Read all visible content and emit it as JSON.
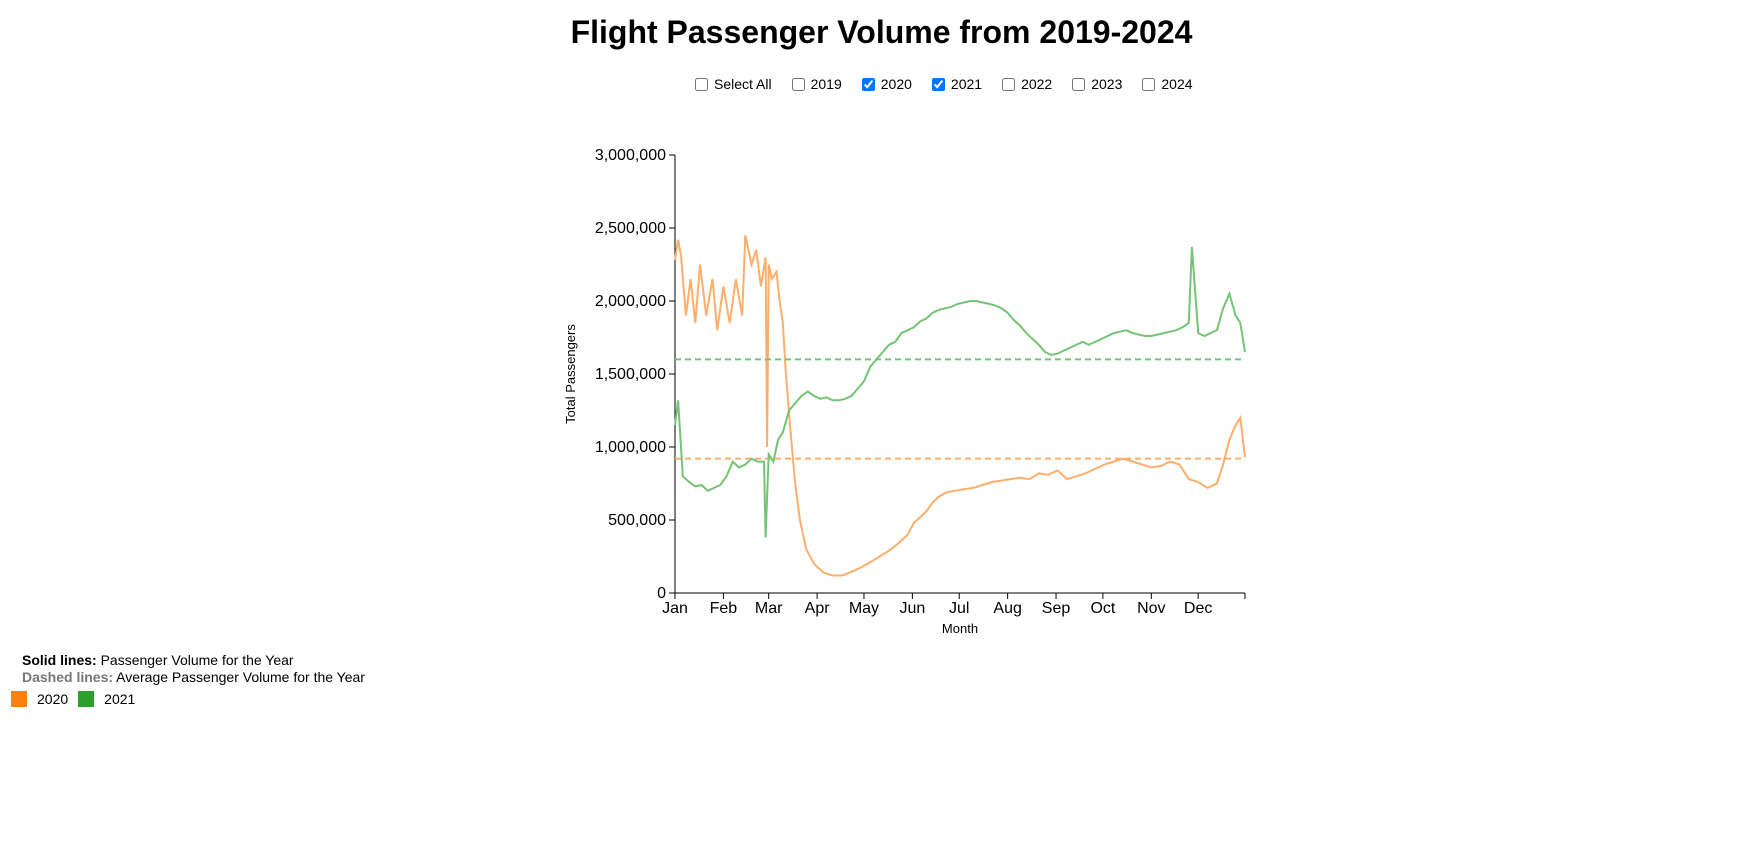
{
  "title": "Flight Passenger Volume from 2019-2024",
  "controls": [
    {
      "label": "Select All",
      "checked": false
    },
    {
      "label": "2019",
      "checked": false
    },
    {
      "label": "2020",
      "checked": true
    },
    {
      "label": "2021",
      "checked": true
    },
    {
      "label": "2022",
      "checked": false
    },
    {
      "label": "2023",
      "checked": false
    },
    {
      "label": "2024",
      "checked": false
    }
  ],
  "notes": {
    "solid_key": "Solid lines:",
    "solid_text": " Passenger Volume for the Year",
    "dashed_key": "Dashed lines:",
    "dashed_text": " Average Passenger Volume for the Year"
  },
  "legend": [
    {
      "label": "2020",
      "color": "#ff7f0e"
    },
    {
      "label": "2021",
      "color": "#2ca02c"
    }
  ],
  "chart_data": {
    "type": "line",
    "title": "Flight Passenger Volume from 2019-2024",
    "xlabel": "Month",
    "ylabel": "Total Passengers",
    "ylim": [
      0,
      3000000
    ],
    "yticks": [
      0,
      500000,
      1000000,
      1500000,
      2000000,
      2500000,
      3000000
    ],
    "ytick_labels": [
      "0",
      "500,000",
      "1,000,000",
      "1,500,000",
      "2,000,000",
      "2,500,000",
      "3,000,000"
    ],
    "xlim": [
      1,
      366
    ],
    "x_unit": "day of year",
    "xticks": [
      {
        "label": "Jan",
        "day": 1
      },
      {
        "label": "Feb",
        "day": 32
      },
      {
        "label": "Mar",
        "day": 61
      },
      {
        "label": "Apr",
        "day": 92
      },
      {
        "label": "May",
        "day": 122
      },
      {
        "label": "Jun",
        "day": 153
      },
      {
        "label": "Jul",
        "day": 183
      },
      {
        "label": "Aug",
        "day": 214
      },
      {
        "label": "Sep",
        "day": 245
      },
      {
        "label": "Oct",
        "day": 275
      },
      {
        "label": "Nov",
        "day": 306
      },
      {
        "label": "Dec",
        "day": 336
      }
    ],
    "grid": false,
    "legend_placement": "bottom-left",
    "series": [
      {
        "name": "2020",
        "color": "#fdae6b",
        "average": 920000,
        "points": [
          [
            1,
            2280000
          ],
          [
            3,
            2420000
          ],
          [
            5,
            2300000
          ],
          [
            8,
            1900000
          ],
          [
            11,
            2150000
          ],
          [
            14,
            1850000
          ],
          [
            17,
            2250000
          ],
          [
            21,
            1900000
          ],
          [
            25,
            2150000
          ],
          [
            28,
            1800000
          ],
          [
            32,
            2100000
          ],
          [
            36,
            1850000
          ],
          [
            40,
            2150000
          ],
          [
            44,
            1900000
          ],
          [
            46,
            2450000
          ],
          [
            50,
            2250000
          ],
          [
            53,
            2350000
          ],
          [
            56,
            2100000
          ],
          [
            59,
            2300000
          ],
          [
            60,
            1000000
          ],
          [
            61,
            2250000
          ],
          [
            63,
            2150000
          ],
          [
            66,
            2200000
          ],
          [
            68,
            2000000
          ],
          [
            70,
            1850000
          ],
          [
            72,
            1500000
          ],
          [
            75,
            1100000
          ],
          [
            78,
            750000
          ],
          [
            81,
            500000
          ],
          [
            85,
            300000
          ],
          [
            90,
            200000
          ],
          [
            96,
            140000
          ],
          [
            102,
            120000
          ],
          [
            108,
            120000
          ],
          [
            114,
            145000
          ],
          [
            120,
            175000
          ],
          [
            126,
            210000
          ],
          [
            132,
            250000
          ],
          [
            138,
            290000
          ],
          [
            144,
            340000
          ],
          [
            150,
            400000
          ],
          [
            154,
            480000
          ],
          [
            158,
            520000
          ],
          [
            162,
            560000
          ],
          [
            166,
            620000
          ],
          [
            170,
            660000
          ],
          [
            175,
            690000
          ],
          [
            180,
            700000
          ],
          [
            186,
            710000
          ],
          [
            192,
            720000
          ],
          [
            198,
            740000
          ],
          [
            204,
            760000
          ],
          [
            210,
            770000
          ],
          [
            216,
            780000
          ],
          [
            222,
            790000
          ],
          [
            228,
            780000
          ],
          [
            234,
            820000
          ],
          [
            240,
            810000
          ],
          [
            246,
            840000
          ],
          [
            252,
            780000
          ],
          [
            258,
            800000
          ],
          [
            264,
            820000
          ],
          [
            270,
            850000
          ],
          [
            276,
            880000
          ],
          [
            282,
            900000
          ],
          [
            288,
            920000
          ],
          [
            294,
            900000
          ],
          [
            300,
            880000
          ],
          [
            306,
            860000
          ],
          [
            312,
            870000
          ],
          [
            318,
            900000
          ],
          [
            324,
            880000
          ],
          [
            330,
            780000
          ],
          [
            336,
            760000
          ],
          [
            342,
            720000
          ],
          [
            348,
            750000
          ],
          [
            352,
            880000
          ],
          [
            356,
            1050000
          ],
          [
            360,
            1150000
          ],
          [
            363,
            1200000
          ],
          [
            366,
            930000
          ]
        ]
      },
      {
        "name": "2021",
        "color": "#74c476",
        "average": 1600000,
        "points": [
          [
            1,
            1150000
          ],
          [
            3,
            1320000
          ],
          [
            6,
            800000
          ],
          [
            10,
            760000
          ],
          [
            14,
            730000
          ],
          [
            18,
            740000
          ],
          [
            22,
            700000
          ],
          [
            26,
            720000
          ],
          [
            30,
            740000
          ],
          [
            34,
            800000
          ],
          [
            38,
            900000
          ],
          [
            42,
            860000
          ],
          [
            46,
            880000
          ],
          [
            50,
            920000
          ],
          [
            54,
            900000
          ],
          [
            58,
            900000
          ],
          [
            59,
            380000
          ],
          [
            61,
            950000
          ],
          [
            64,
            900000
          ],
          [
            67,
            1050000
          ],
          [
            70,
            1100000
          ],
          [
            74,
            1250000
          ],
          [
            78,
            1300000
          ],
          [
            82,
            1350000
          ],
          [
            86,
            1380000
          ],
          [
            90,
            1350000
          ],
          [
            94,
            1330000
          ],
          [
            98,
            1340000
          ],
          [
            102,
            1320000
          ],
          [
            106,
            1320000
          ],
          [
            110,
            1330000
          ],
          [
            114,
            1350000
          ],
          [
            118,
            1400000
          ],
          [
            122,
            1450000
          ],
          [
            126,
            1550000
          ],
          [
            130,
            1600000
          ],
          [
            134,
            1650000
          ],
          [
            138,
            1700000
          ],
          [
            142,
            1720000
          ],
          [
            146,
            1780000
          ],
          [
            150,
            1800000
          ],
          [
            154,
            1820000
          ],
          [
            158,
            1860000
          ],
          [
            162,
            1880000
          ],
          [
            166,
            1920000
          ],
          [
            170,
            1940000
          ],
          [
            174,
            1950000
          ],
          [
            178,
            1960000
          ],
          [
            182,
            1980000
          ],
          [
            186,
            1990000
          ],
          [
            190,
            2000000
          ],
          [
            194,
            2000000
          ],
          [
            198,
            1990000
          ],
          [
            202,
            1980000
          ],
          [
            206,
            1970000
          ],
          [
            210,
            1950000
          ],
          [
            214,
            1920000
          ],
          [
            218,
            1870000
          ],
          [
            222,
            1830000
          ],
          [
            226,
            1780000
          ],
          [
            230,
            1740000
          ],
          [
            234,
            1700000
          ],
          [
            238,
            1650000
          ],
          [
            242,
            1630000
          ],
          [
            246,
            1640000
          ],
          [
            250,
            1660000
          ],
          [
            254,
            1680000
          ],
          [
            258,
            1700000
          ],
          [
            262,
            1720000
          ],
          [
            266,
            1700000
          ],
          [
            270,
            1720000
          ],
          [
            274,
            1740000
          ],
          [
            278,
            1760000
          ],
          [
            282,
            1780000
          ],
          [
            286,
            1790000
          ],
          [
            290,
            1800000
          ],
          [
            294,
            1780000
          ],
          [
            298,
            1770000
          ],
          [
            302,
            1760000
          ],
          [
            306,
            1760000
          ],
          [
            310,
            1770000
          ],
          [
            314,
            1780000
          ],
          [
            318,
            1790000
          ],
          [
            322,
            1800000
          ],
          [
            326,
            1820000
          ],
          [
            330,
            1850000
          ],
          [
            332,
            2370000
          ],
          [
            336,
            1780000
          ],
          [
            340,
            1760000
          ],
          [
            344,
            1780000
          ],
          [
            348,
            1800000
          ],
          [
            352,
            1950000
          ],
          [
            356,
            2050000
          ],
          [
            360,
            1900000
          ],
          [
            363,
            1850000
          ],
          [
            366,
            1650000
          ]
        ]
      }
    ]
  }
}
